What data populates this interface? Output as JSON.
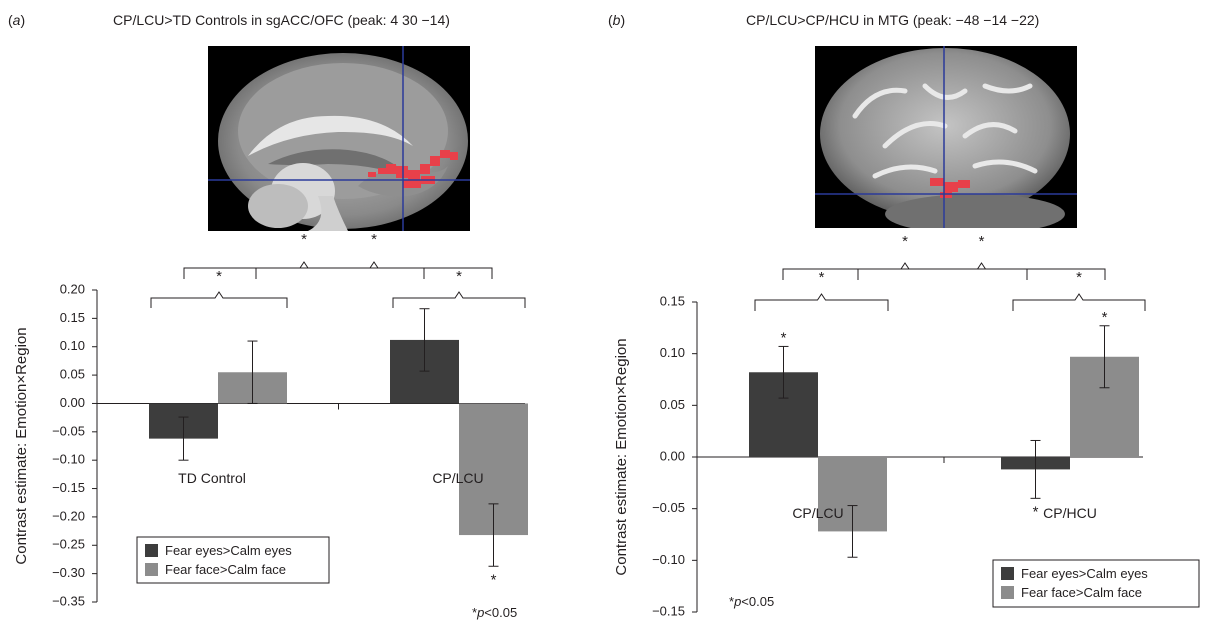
{
  "panels": [
    {
      "label": "a",
      "title": "CP/LCU>TD Controls in sgACC/OFC (peak: 4 30 −14)"
    },
    {
      "label": "b",
      "title": "CP/LCU>CP/HCU in MTG (peak: −48 −14 −22)"
    }
  ],
  "colors": {
    "fear_eyes": "#3d3d3d",
    "fear_face": "#8c8c8c",
    "activation": "#e8404a",
    "crosshair": "#2b3a9a",
    "axis": "#231f20"
  },
  "chart_data": [
    {
      "type": "bar",
      "panel": "a",
      "ylabel": "Contrast estimate: Emotion×Region",
      "ylim": [
        -0.35,
        0.2
      ],
      "yticks": [
        "0.20",
        "0.15",
        "0.10",
        "0.05",
        "0.00",
        "−0.05",
        "−0.10",
        "−0.15",
        "−0.20",
        "−0.25",
        "−0.30",
        "−0.35"
      ],
      "categories": [
        "TD Control",
        "CP/LCU"
      ],
      "series": [
        {
          "name": "Fear eyes>Calm eyes",
          "values": [
            -0.062,
            0.112
          ],
          "errors": [
            0.038,
            0.055
          ]
        },
        {
          "name": "Fear face>Calm face",
          "values": [
            0.055,
            -0.232
          ],
          "errors": [
            0.055,
            0.055
          ]
        }
      ],
      "bar_stars": [
        "",
        "",
        "",
        "*"
      ],
      "bracket_stars": [
        "*",
        "*",
        "*",
        "*"
      ],
      "legend_position": "bottom-left",
      "footnote": {
        "star": "*",
        "text": "p<0.05"
      },
      "grid": false
    },
    {
      "type": "bar",
      "panel": "b",
      "ylabel": "Contrast estimate: Emotion×Region",
      "ylim": [
        -0.15,
        0.15
      ],
      "yticks": [
        "0.15",
        "0.10",
        "0.05",
        "0.00",
        "−0.05",
        "−0.10",
        "−0.15"
      ],
      "categories": [
        "CP/LCU",
        "CP/HCU"
      ],
      "series": [
        {
          "name": "Fear eyes>Calm eyes",
          "values": [
            0.082,
            -0.012
          ],
          "errors": [
            0.025,
            0.028
          ]
        },
        {
          "name": "Fear face>Calm face",
          "values": [
            -0.072,
            0.097
          ],
          "errors": [
            0.025,
            0.03
          ]
        }
      ],
      "bar_stars": [
        "*",
        "",
        "*",
        "*"
      ],
      "bracket_stars": [
        "*",
        "*",
        "*",
        "*"
      ],
      "legend_position": "bottom-right",
      "footnote": {
        "star": "*",
        "text": "p<0.05"
      },
      "grid": false
    }
  ]
}
